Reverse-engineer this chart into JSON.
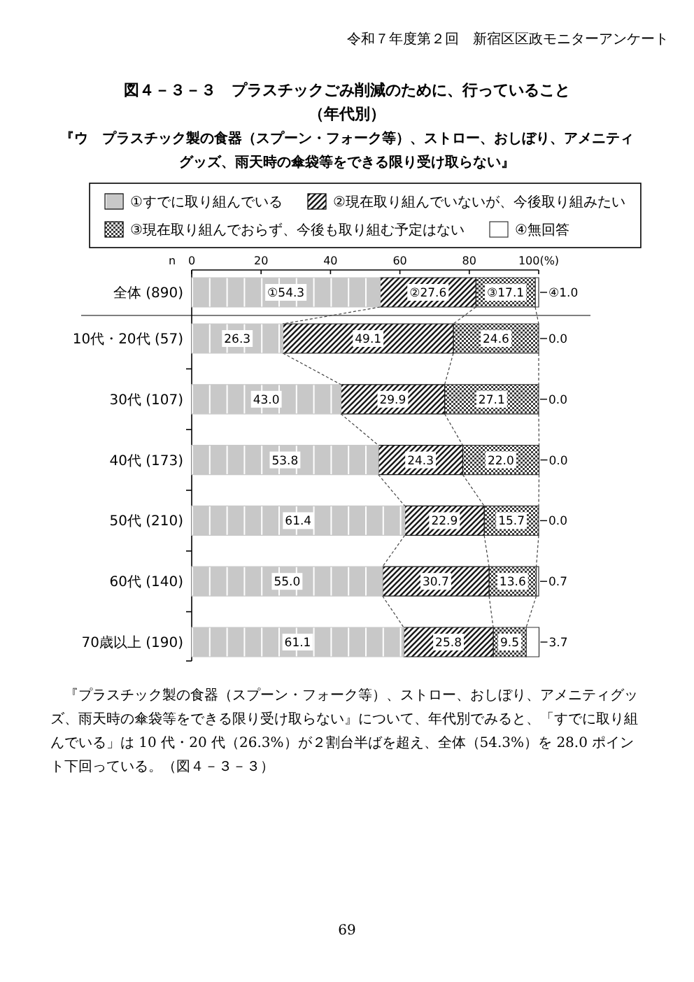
{
  "chart_data": {
    "type": "bar",
    "orientation": "horizontal",
    "stacked": true,
    "title": "図４－３－３　プラスチックごみ削減のために、行っていること",
    "subtitle": "（年代別）",
    "categories": [
      "全体 (890)",
      "10代・20代 (57)",
      "30代 (107)",
      "40代 (173)",
      "50代 (210)",
      "60代 (140)",
      "70歳以上 (190)"
    ],
    "series": [
      {
        "name": "①すでに取り組んでいる",
        "color": "#c8c8c8",
        "values": [
          54.3,
          26.3,
          43.0,
          53.8,
          61.4,
          55.0,
          61.1
        ],
        "value_labels": [
          "①54.3",
          "26.3",
          "43.0",
          "53.8",
          "61.4",
          "55.0",
          "61.1"
        ]
      },
      {
        "name": "②現在取り組んでいないが、今後取り組みたい",
        "color": "#1a1a1a",
        "values": [
          27.6,
          49.1,
          29.9,
          24.3,
          22.9,
          30.7,
          25.8
        ],
        "value_labels": [
          "②27.6",
          "49.1",
          "29.9",
          "24.3",
          "22.9",
          "30.7",
          "25.8"
        ]
      },
      {
        "name": "③現在取り組んでおらず、今後も取り組む予定はない",
        "color": "#3c3c3c",
        "values": [
          17.1,
          24.6,
          27.1,
          22.0,
          15.7,
          13.6,
          9.5
        ],
        "value_labels": [
          "③17.1",
          "24.6",
          "27.1",
          "22.0",
          "15.7",
          "13.6",
          "9.5"
        ]
      },
      {
        "name": "④無回答",
        "color": "#ffffff",
        "values": [
          1.0,
          0.0,
          0.0,
          0.0,
          0.0,
          0.7,
          3.7
        ],
        "value_labels": [
          "④1.0",
          "0.0",
          "0.0",
          "0.0",
          "0.0",
          "0.7",
          "3.7"
        ]
      }
    ],
    "xlim": [
      0,
      100
    ],
    "xticks": [
      0,
      20,
      40,
      60,
      80,
      {
        "value": 100,
        "label": "100(%)"
      }
    ],
    "legend": "top",
    "annotations": [
      "令和７年度第２回　新宿区区政モニターアンケート",
      "『ウ　プラスチック製の食器（スプーン・フォーク等）、ストロー、おしぼり、アメニティグッズ、雨天時の傘袋等をできる限り受け取らない』",
      "n",
      "『プラスチック製の食器（スプーン・フォーク等）、ストロー、おしぼり、アメニティグッズ、雨天時の傘袋等をできる限り受け取らない』について、年代別でみると、「すでに取り組んでいる」は 10 代・20 代（26.3%）が２割台半ばを超え、全体（54.3%）を 28.0 ポイント下回っている。（図４－３－３）",
      "69"
    ]
  }
}
